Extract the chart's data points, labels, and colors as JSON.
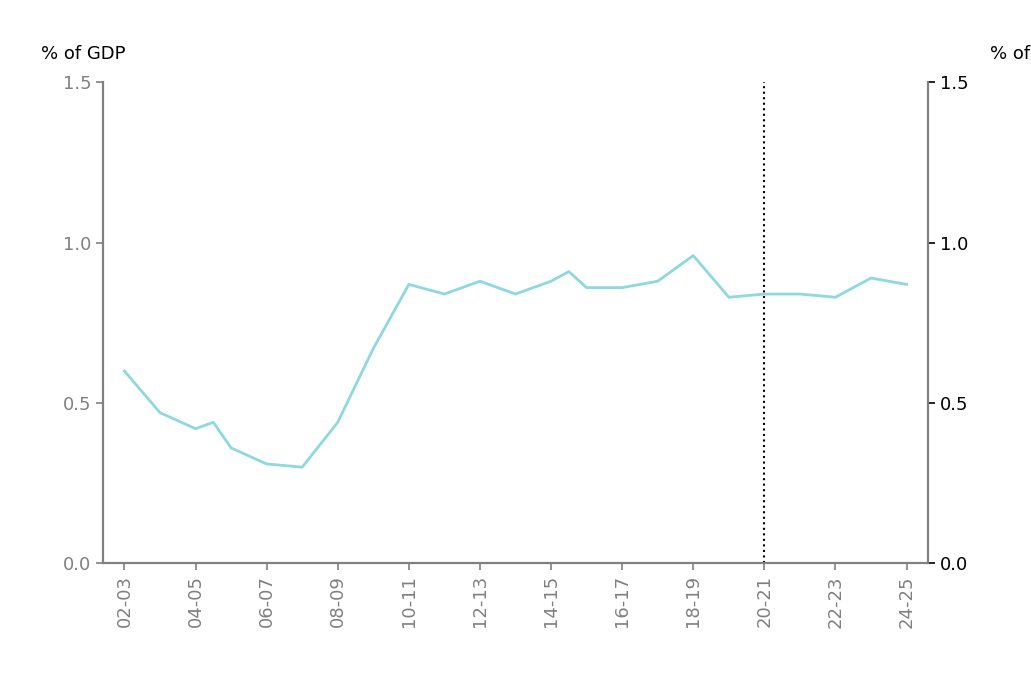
{
  "x_labels": [
    "02-03",
    "04-05",
    "06-07",
    "08-09",
    "10-11",
    "12-13",
    "14-15",
    "16-17",
    "18-19",
    "20-21",
    "22-23",
    "24-25"
  ],
  "x_ticks": [
    0,
    1,
    2,
    3,
    4,
    5,
    6,
    7,
    8,
    9,
    10,
    11
  ],
  "x_data": [
    0,
    0.5,
    1.0,
    1.25,
    1.5,
    2.0,
    2.5,
    3.0,
    3.5,
    4.0,
    4.5,
    5.0,
    5.5,
    6.0,
    6.25,
    6.5,
    7.0,
    7.5,
    8.0,
    8.5,
    9.0,
    9.5,
    10.0,
    10.5,
    11.0
  ],
  "y_data": [
    0.6,
    0.47,
    0.42,
    0.44,
    0.36,
    0.31,
    0.3,
    0.44,
    0.67,
    0.87,
    0.84,
    0.88,
    0.84,
    0.88,
    0.91,
    0.86,
    0.86,
    0.88,
    0.96,
    0.83,
    0.84,
    0.84,
    0.83,
    0.89,
    0.87
  ],
  "dotted_line_x": 9.0,
  "ylim": [
    0.0,
    1.5
  ],
  "yticks": [
    0.0,
    0.5,
    1.0,
    1.5
  ],
  "ylabel_left": "% of GDP",
  "ylabel_right": "% of GDP",
  "line_color": "#8ed8e0",
  "line_width": 2.0,
  "dotted_line_color": "#000000",
  "axis_color": "#808080",
  "background_color": "#ffffff",
  "tick_label_fontsize": 13,
  "ylabel_fontsize": 13
}
